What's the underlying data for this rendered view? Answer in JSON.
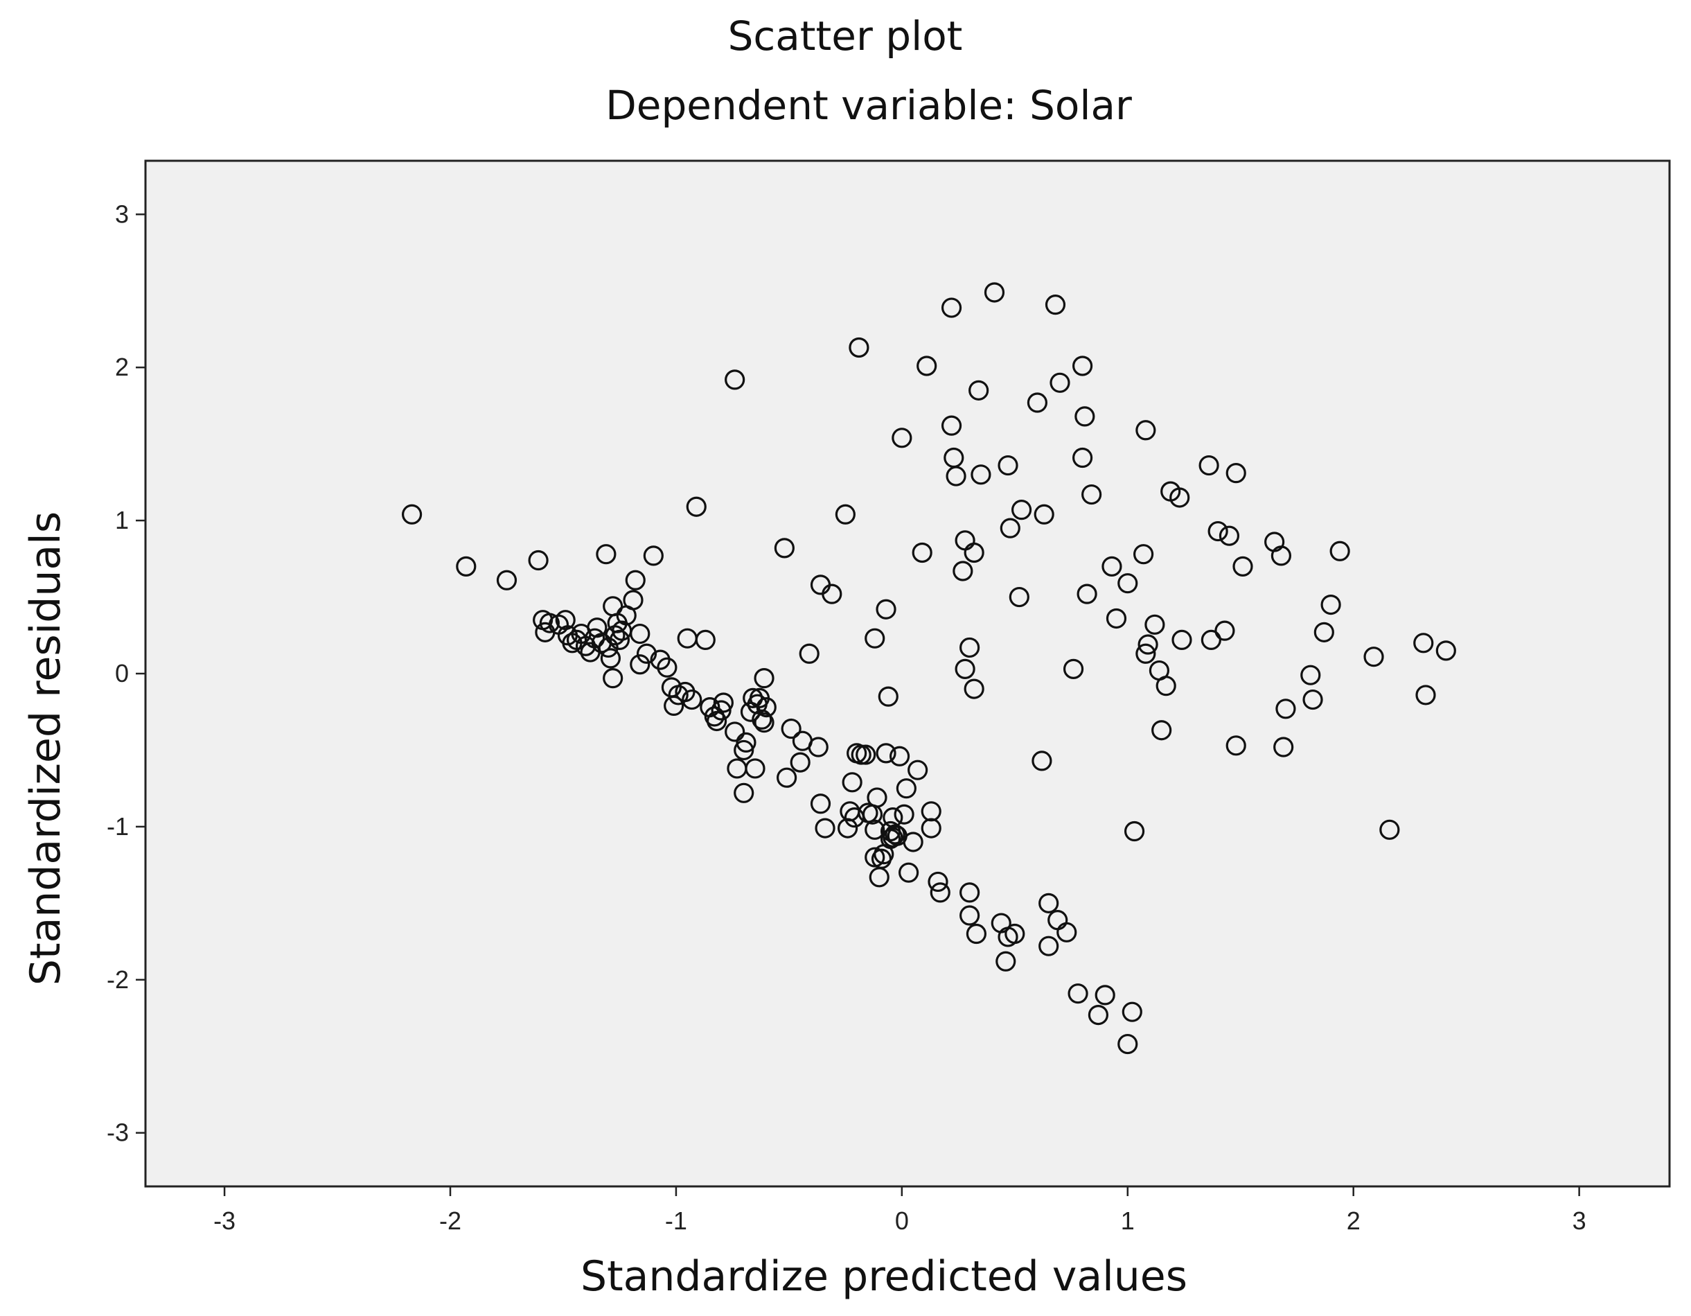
{
  "chart_data": {
    "type": "scatter",
    "title": "Scatter plot",
    "subtitle": "Dependent variable: Solar",
    "xlabel": "Standardize predicted values",
    "ylabel": "Standardized residuals",
    "xlim": [
      -3.35,
      3.4
    ],
    "ylim": [
      -3.35,
      3.35
    ],
    "xticks": [
      -3,
      -2,
      -1,
      0,
      1,
      2,
      3
    ],
    "yticks": [
      -3,
      -2,
      -1,
      0,
      1,
      2,
      3
    ],
    "xtick_labels": [
      "-3",
      "-2",
      "-1",
      "0",
      "1",
      "2",
      "3"
    ],
    "ytick_labels": [
      "-3",
      "-2",
      "-1",
      "0",
      "1",
      "2",
      "3"
    ],
    "grid": false,
    "marker": "open-circle",
    "points": [
      [
        -2.17,
        1.04
      ],
      [
        -1.93,
        0.7
      ],
      [
        -1.75,
        0.61
      ],
      [
        -1.61,
        0.74
      ],
      [
        -1.59,
        0.35
      ],
      [
        -1.58,
        0.27
      ],
      [
        -1.56,
        0.33
      ],
      [
        -1.52,
        0.32
      ],
      [
        -1.49,
        0.35
      ],
      [
        -1.48,
        0.25
      ],
      [
        -1.46,
        0.2
      ],
      [
        -1.44,
        0.22
      ],
      [
        -1.42,
        0.26
      ],
      [
        -1.4,
        0.18
      ],
      [
        -1.38,
        0.14
      ],
      [
        -1.36,
        0.23
      ],
      [
        -1.35,
        0.3
      ],
      [
        -1.33,
        0.2
      ],
      [
        -1.31,
        0.78
      ],
      [
        -1.3,
        0.17
      ],
      [
        -1.29,
        0.1
      ],
      [
        -1.28,
        0.44
      ],
      [
        -1.28,
        -0.03
      ],
      [
        -1.27,
        0.25
      ],
      [
        -1.26,
        0.33
      ],
      [
        -1.25,
        0.22
      ],
      [
        -1.24,
        0.28
      ],
      [
        -1.22,
        0.38
      ],
      [
        -1.19,
        0.48
      ],
      [
        -1.18,
        0.61
      ],
      [
        -1.16,
        0.26
      ],
      [
        -1.16,
        0.06
      ],
      [
        -1.13,
        0.13
      ],
      [
        -1.1,
        0.77
      ],
      [
        -1.07,
        0.09
      ],
      [
        -1.04,
        0.04
      ],
      [
        -1.02,
        -0.09
      ],
      [
        -1.01,
        -0.21
      ],
      [
        -0.99,
        -0.14
      ],
      [
        -0.96,
        -0.12
      ],
      [
        -0.95,
        0.23
      ],
      [
        -0.93,
        -0.17
      ],
      [
        -0.91,
        1.09
      ],
      [
        -0.87,
        0.22
      ],
      [
        -0.85,
        -0.22
      ],
      [
        -0.83,
        -0.28
      ],
      [
        -0.82,
        -0.31
      ],
      [
        -0.8,
        -0.24
      ],
      [
        -0.79,
        -0.19
      ],
      [
        -0.74,
        1.92
      ],
      [
        -0.74,
        -0.38
      ],
      [
        -0.73,
        -0.62
      ],
      [
        -0.7,
        -0.78
      ],
      [
        -0.7,
        -0.5
      ],
      [
        -0.69,
        -0.45
      ],
      [
        -0.67,
        -0.25
      ],
      [
        -0.66,
        -0.16
      ],
      [
        -0.65,
        -0.62
      ],
      [
        -0.64,
        -0.2
      ],
      [
        -0.63,
        -0.16
      ],
      [
        -0.62,
        -0.3
      ],
      [
        -0.61,
        -0.03
      ],
      [
        -0.61,
        -0.32
      ],
      [
        -0.6,
        -0.22
      ],
      [
        -0.52,
        0.82
      ],
      [
        -0.51,
        -0.68
      ],
      [
        -0.49,
        -0.36
      ],
      [
        -0.45,
        -0.58
      ],
      [
        -0.44,
        -0.44
      ],
      [
        -0.41,
        0.13
      ],
      [
        -0.37,
        -0.48
      ],
      [
        -0.36,
        0.58
      ],
      [
        -0.36,
        -0.85
      ],
      [
        -0.34,
        -1.01
      ],
      [
        -0.31,
        0.52
      ],
      [
        -0.25,
        1.04
      ],
      [
        -0.24,
        -1.01
      ],
      [
        -0.23,
        -0.9
      ],
      [
        -0.22,
        -0.71
      ],
      [
        -0.21,
        -0.94
      ],
      [
        -0.2,
        -0.52
      ],
      [
        -0.19,
        2.13
      ],
      [
        -0.18,
        -0.53
      ],
      [
        -0.16,
        -0.53
      ],
      [
        -0.15,
        -0.91
      ],
      [
        -0.13,
        -0.92
      ],
      [
        -0.12,
        -1.2
      ],
      [
        -0.12,
        0.23
      ],
      [
        -0.12,
        -1.02
      ],
      [
        -0.11,
        -0.81
      ],
      [
        -0.1,
        -1.33
      ],
      [
        -0.09,
        -1.21
      ],
      [
        -0.08,
        -1.18
      ],
      [
        -0.07,
        -0.52
      ],
      [
        -0.07,
        0.42
      ],
      [
        -0.06,
        -0.15
      ],
      [
        -0.05,
        -1.03
      ],
      [
        -0.05,
        -1.08
      ],
      [
        -0.04,
        -0.94
      ],
      [
        -0.04,
        -1.07
      ],
      [
        -0.03,
        -1.05
      ],
      [
        -0.02,
        -1.06
      ],
      [
        -0.01,
        -0.54
      ],
      [
        0.0,
        1.54
      ],
      [
        0.01,
        -0.92
      ],
      [
        0.02,
        -0.75
      ],
      [
        0.03,
        -1.3
      ],
      [
        0.05,
        -1.1
      ],
      [
        0.07,
        -0.63
      ],
      [
        0.09,
        0.79
      ],
      [
        0.11,
        2.01
      ],
      [
        0.13,
        -0.9
      ],
      [
        0.13,
        -1.01
      ],
      [
        0.16,
        -1.36
      ],
      [
        0.17,
        -1.43
      ],
      [
        0.22,
        2.39
      ],
      [
        0.22,
        1.62
      ],
      [
        0.23,
        1.41
      ],
      [
        0.24,
        1.29
      ],
      [
        0.27,
        0.67
      ],
      [
        0.28,
        0.87
      ],
      [
        0.28,
        0.03
      ],
      [
        0.3,
        -1.43
      ],
      [
        0.3,
        -1.58
      ],
      [
        0.3,
        0.17
      ],
      [
        0.32,
        -0.1
      ],
      [
        0.32,
        0.79
      ],
      [
        0.33,
        -1.7
      ],
      [
        0.34,
        1.85
      ],
      [
        0.35,
        1.3
      ],
      [
        0.41,
        2.49
      ],
      [
        0.44,
        -1.63
      ],
      [
        0.46,
        -1.88
      ],
      [
        0.47,
        1.36
      ],
      [
        0.47,
        -1.72
      ],
      [
        0.48,
        0.95
      ],
      [
        0.5,
        -1.7
      ],
      [
        0.52,
        0.5
      ],
      [
        0.53,
        1.07
      ],
      [
        0.6,
        1.77
      ],
      [
        0.62,
        -0.57
      ],
      [
        0.63,
        1.04
      ],
      [
        0.65,
        -1.5
      ],
      [
        0.65,
        -1.78
      ],
      [
        0.68,
        2.41
      ],
      [
        0.69,
        -1.61
      ],
      [
        0.7,
        1.9
      ],
      [
        0.73,
        -1.69
      ],
      [
        0.76,
        0.03
      ],
      [
        0.78,
        -2.09
      ],
      [
        0.8,
        1.41
      ],
      [
        0.8,
        2.01
      ],
      [
        0.81,
        1.68
      ],
      [
        0.82,
        0.52
      ],
      [
        0.84,
        1.17
      ],
      [
        0.87,
        -2.23
      ],
      [
        0.9,
        -2.1
      ],
      [
        0.93,
        0.7
      ],
      [
        0.95,
        0.36
      ],
      [
        1.0,
        0.59
      ],
      [
        1.0,
        -2.42
      ],
      [
        1.02,
        -2.21
      ],
      [
        1.03,
        -1.03
      ],
      [
        1.07,
        0.78
      ],
      [
        1.08,
        1.59
      ],
      [
        1.08,
        0.13
      ],
      [
        1.09,
        0.19
      ],
      [
        1.12,
        0.32
      ],
      [
        1.14,
        0.02
      ],
      [
        1.15,
        -0.37
      ],
      [
        1.17,
        -0.08
      ],
      [
        1.19,
        1.19
      ],
      [
        1.23,
        1.15
      ],
      [
        1.24,
        0.22
      ],
      [
        1.36,
        1.36
      ],
      [
        1.37,
        0.22
      ],
      [
        1.4,
        0.93
      ],
      [
        1.43,
        0.28
      ],
      [
        1.45,
        0.9
      ],
      [
        1.48,
        1.31
      ],
      [
        1.48,
        -0.47
      ],
      [
        1.51,
        0.7
      ],
      [
        1.65,
        0.86
      ],
      [
        1.68,
        0.77
      ],
      [
        1.69,
        -0.48
      ],
      [
        1.7,
        -0.23
      ],
      [
        1.81,
        -0.01
      ],
      [
        1.82,
        -0.17
      ],
      [
        1.87,
        0.27
      ],
      [
        1.9,
        0.45
      ],
      [
        1.94,
        0.8
      ],
      [
        2.09,
        0.11
      ],
      [
        2.16,
        -1.02
      ],
      [
        2.31,
        0.2
      ],
      [
        2.32,
        -0.14
      ],
      [
        2.41,
        0.15
      ]
    ]
  }
}
